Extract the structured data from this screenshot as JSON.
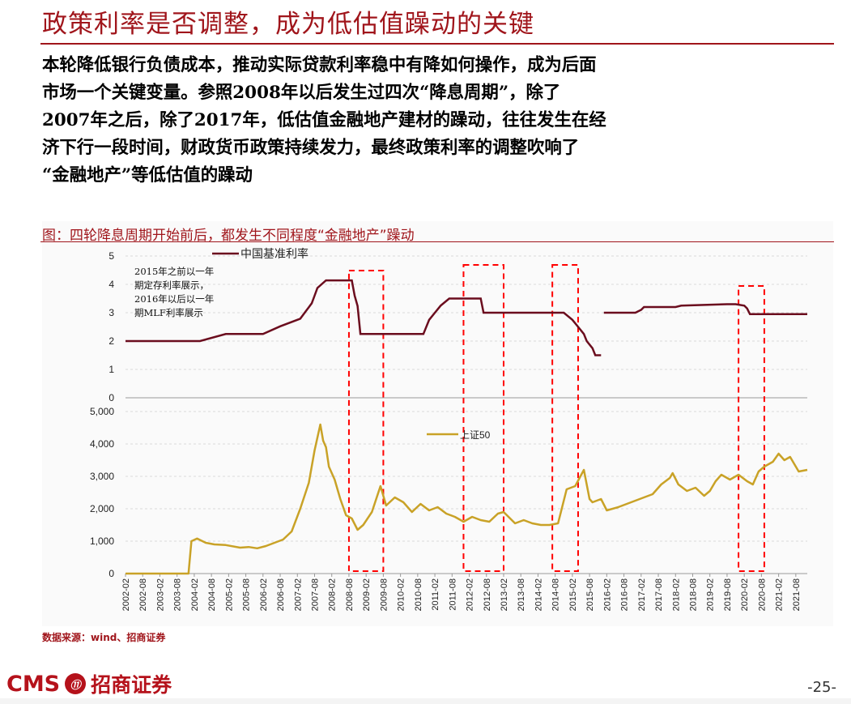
{
  "title": "政策利率是否调整，成为低估值躁动的关键",
  "lead_lines": [
    "本轮降低银行负债成本，推动实际贷款利率稳中有降如何操作，成为后面",
    "市场一个关键变量。参照2008年以后发生过四次“降息周期”，除了",
    "2007年之后，除了2017年，低估值金融地产建材的躁动，往往发生在经",
    "济下行一段时间，财政货币政策持续发力，最终政策利率的调整吹响了",
    "“金融地产”等低估值的躁动"
  ],
  "figure_title": "图：四轮降息周期开始前后，都发生不同程度“金融地产”躁动",
  "source": "数据来源：wind、招商证券",
  "footer": {
    "cms": "CMS",
    "logo_glyph": "⑪",
    "company": "招商证券",
    "page": "-25-"
  },
  "colors": {
    "brand_red": "#a0151b",
    "rate_line": "#6b0d1e",
    "index_line": "#c9a227",
    "highlight_box": "#ff0000"
  },
  "chart_data": [
    {
      "type": "line",
      "series": [
        {
          "name": "中国基准利率",
          "x": [
            "2002-02",
            "2003-08",
            "2004-04",
            "2005-01",
            "2006-02",
            "2006-08",
            "2007-03",
            "2007-05",
            "2007-07",
            "2007-08",
            "2007-09",
            "2007-12",
            "2008-09",
            "2008-10",
            "2008-11",
            "2008-12",
            "2009-12",
            "2010-10",
            "2010-12",
            "2011-02",
            "2011-04",
            "2011-07",
            "2012-06",
            "2012-07",
            "2014-10",
            "2014-11",
            "2015-02",
            "2015-04",
            "2015-06",
            "2015-07",
            "2015-09",
            "2015-10",
            "2015-12"
          ],
          "values": [
            2.0,
            2.0,
            2.0,
            2.25,
            2.25,
            2.52,
            2.79,
            3.06,
            3.33,
            3.6,
            3.87,
            4.14,
            4.14,
            3.6,
            3.24,
            2.25,
            2.25,
            2.25,
            2.75,
            3.0,
            3.25,
            3.5,
            3.5,
            3.0,
            3.0,
            3.0,
            2.75,
            2.5,
            2.25,
            2.0,
            1.75,
            1.5,
            1.5
          ]
        },
        {
          "name": "",
          "x": [
            "2016-01",
            "2016-12",
            "2017-02",
            "2017-03",
            "2018-02",
            "2018-04",
            "2019-08",
            "2019-11",
            "2020-02",
            "2020-03",
            "2020-04",
            "2021-12"
          ],
          "values": [
            3.0,
            3.0,
            3.1,
            3.2,
            3.2,
            3.25,
            3.3,
            3.3,
            3.25,
            3.15,
            2.95,
            2.95
          ]
        }
      ],
      "legend": "中国基准利率",
      "legend_placement": "top-left",
      "annotation": [
        "2015年之前以一年",
        "期定存利率展示，",
        "2016年以后以一年",
        "期MLF利率展示"
      ],
      "yticks": [
        "0",
        "1",
        "2",
        "3",
        "4",
        "5"
      ],
      "ylim": [
        0,
        5
      ]
    },
    {
      "type": "line",
      "series": [
        {
          "name": "上证50",
          "x": [
            "2002-02",
            "2003-12",
            "2004-01",
            "2004-03",
            "2004-06",
            "2004-09",
            "2005-01",
            "2005-06",
            "2005-09",
            "2005-12",
            "2006-03",
            "2006-06",
            "2006-09",
            "2006-12",
            "2007-03",
            "2007-06",
            "2007-08",
            "2007-10",
            "2007-11",
            "2007-12",
            "2008-01",
            "2008-03",
            "2008-05",
            "2008-07",
            "2008-09",
            "2008-11",
            "2009-01",
            "2009-04",
            "2009-07",
            "2009-09",
            "2009-12",
            "2010-03",
            "2010-06",
            "2010-09",
            "2010-12",
            "2011-03",
            "2011-06",
            "2011-09",
            "2011-12",
            "2012-03",
            "2012-06",
            "2012-09",
            "2012-12",
            "2013-02",
            "2013-06",
            "2013-09",
            "2013-12",
            "2014-03",
            "2014-06",
            "2014-09",
            "2014-12",
            "2015-03",
            "2015-06",
            "2015-08",
            "2015-09",
            "2015-12",
            "2016-02",
            "2016-06",
            "2016-09",
            "2016-12",
            "2017-03",
            "2017-06",
            "2017-09",
            "2017-12",
            "2018-01",
            "2018-03",
            "2018-06",
            "2018-09",
            "2018-12",
            "2019-02",
            "2019-04",
            "2019-06",
            "2019-09",
            "2019-12",
            "2020-03",
            "2020-05",
            "2020-07",
            "2020-09",
            "2020-12",
            "2021-02",
            "2021-04",
            "2021-06",
            "2021-09",
            "2021-12"
          ],
          "values": [
            0,
            0,
            1000,
            1080,
            950,
            900,
            880,
            800,
            820,
            780,
            850,
            950,
            1050,
            1300,
            2000,
            2800,
            3800,
            4600,
            4100,
            3900,
            3300,
            2900,
            2300,
            1800,
            1700,
            1350,
            1500,
            1900,
            2700,
            2100,
            2350,
            2200,
            1900,
            2150,
            1950,
            2050,
            1850,
            1750,
            1600,
            1750,
            1650,
            1600,
            1850,
            1900,
            1550,
            1650,
            1550,
            1500,
            1500,
            1550,
            2600,
            2700,
            3200,
            2300,
            2200,
            2300,
            1950,
            2050,
            2150,
            2250,
            2350,
            2450,
            2750,
            2950,
            3100,
            2750,
            2550,
            2650,
            2400,
            2550,
            2850,
            3050,
            2900,
            3050,
            2850,
            2750,
            3150,
            3300,
            3450,
            3700,
            3500,
            3600,
            3150,
            3200
          ]
        }
      ],
      "legend": "上证50",
      "legend_placement": "top-center",
      "yticks": [
        "0",
        "1,000",
        "2,000",
        "3,000",
        "4,000",
        "5,000"
      ],
      "ylim": [
        0,
        5000
      ],
      "x_tick_labels": [
        "2002-02",
        "2002-08",
        "2003-02",
        "2003-08",
        "2004-02",
        "2004-08",
        "2005-02",
        "2005-08",
        "2006-02",
        "2006-08",
        "2007-02",
        "2007-08",
        "2008-02",
        "2008-08",
        "2009-02",
        "2009-08",
        "2010-02",
        "2010-08",
        "2011-02",
        "2011-08",
        "2012-02",
        "2012-08",
        "2013-02",
        "2013-08",
        "2014-02",
        "2014-08",
        "2015-02",
        "2015-08",
        "2016-02",
        "2016-08",
        "2017-02",
        "2017-08",
        "2018-02",
        "2018-08",
        "2019-02",
        "2019-08",
        "2020-02",
        "2020-08",
        "2021-02",
        "2021-08"
      ]
    }
  ],
  "highlight_periods": [
    [
      "2008-08",
      "2009-08"
    ],
    [
      "2011-12",
      "2013-02"
    ],
    [
      "2014-07",
      "2015-04"
    ],
    [
      "2019-12",
      "2020-09"
    ]
  ]
}
